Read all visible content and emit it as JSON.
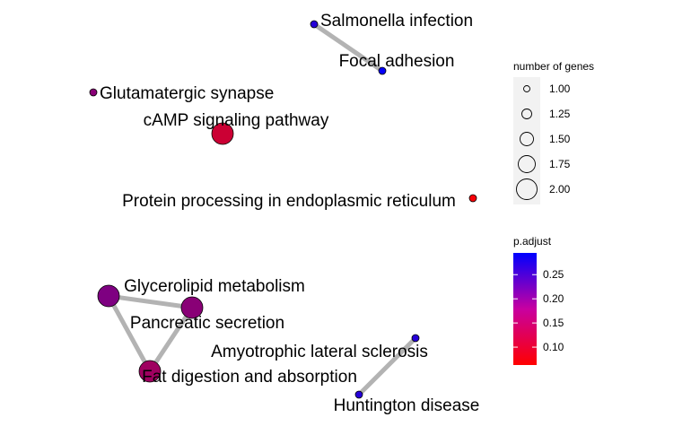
{
  "network": {
    "nodes": [
      {
        "id": "salmonella",
        "label": "Salmonella infection",
        "genes": 1,
        "p_adjust": 0.26
      },
      {
        "id": "focal",
        "label": "Focal adhesion",
        "genes": 1,
        "p_adjust": 0.29
      },
      {
        "id": "glutamatergic",
        "label": "Glutamatergic synapse",
        "genes": 1,
        "p_adjust": 0.17
      },
      {
        "id": "camp",
        "label": "cAMP signaling pathway",
        "genes": 2,
        "p_adjust": 0.11
      },
      {
        "id": "protein",
        "label": "Protein processing in endoplasmic reticulum",
        "genes": 1,
        "p_adjust": 0.07
      },
      {
        "id": "glycerolipid",
        "label": "Glycerolipid metabolism",
        "genes": 2,
        "p_adjust": 0.18
      },
      {
        "id": "pancreatic",
        "label": "Pancreatic secretion",
        "genes": 2,
        "p_adjust": 0.17
      },
      {
        "id": "fat",
        "label": "Fat digestion and absorption",
        "genes": 2,
        "p_adjust": 0.15
      },
      {
        "id": "als",
        "label": "Amyotrophic lateral sclerosis",
        "genes": 1,
        "p_adjust": 0.26
      },
      {
        "id": "huntington",
        "label": "Huntington disease",
        "genes": 1,
        "p_adjust": 0.26
      }
    ],
    "edges": [
      [
        "salmonella",
        "focal"
      ],
      [
        "glycerolipid",
        "pancreatic"
      ],
      [
        "glycerolipid",
        "fat"
      ],
      [
        "pancreatic",
        "fat"
      ],
      [
        "als",
        "huntington"
      ]
    ],
    "edge_color": "#b3b3b3"
  },
  "legend_size": {
    "title": "number of genes",
    "items": [
      {
        "label": "1.00",
        "value": 1.0
      },
      {
        "label": "1.25",
        "value": 1.25
      },
      {
        "label": "1.50",
        "value": 1.5
      },
      {
        "label": "1.75",
        "value": 1.75
      },
      {
        "label": "2.00",
        "value": 2.0
      }
    ]
  },
  "legend_color": {
    "title": "p.adjust",
    "ticks": [
      {
        "label": "0.25",
        "value": 0.25
      },
      {
        "label": "0.20",
        "value": 0.2
      },
      {
        "label": "0.15",
        "value": 0.15
      },
      {
        "label": "0.10",
        "value": 0.1
      }
    ],
    "range": [
      0.063,
      0.295
    ],
    "low_color": "#ff0000",
    "high_color": "#0000ff"
  }
}
